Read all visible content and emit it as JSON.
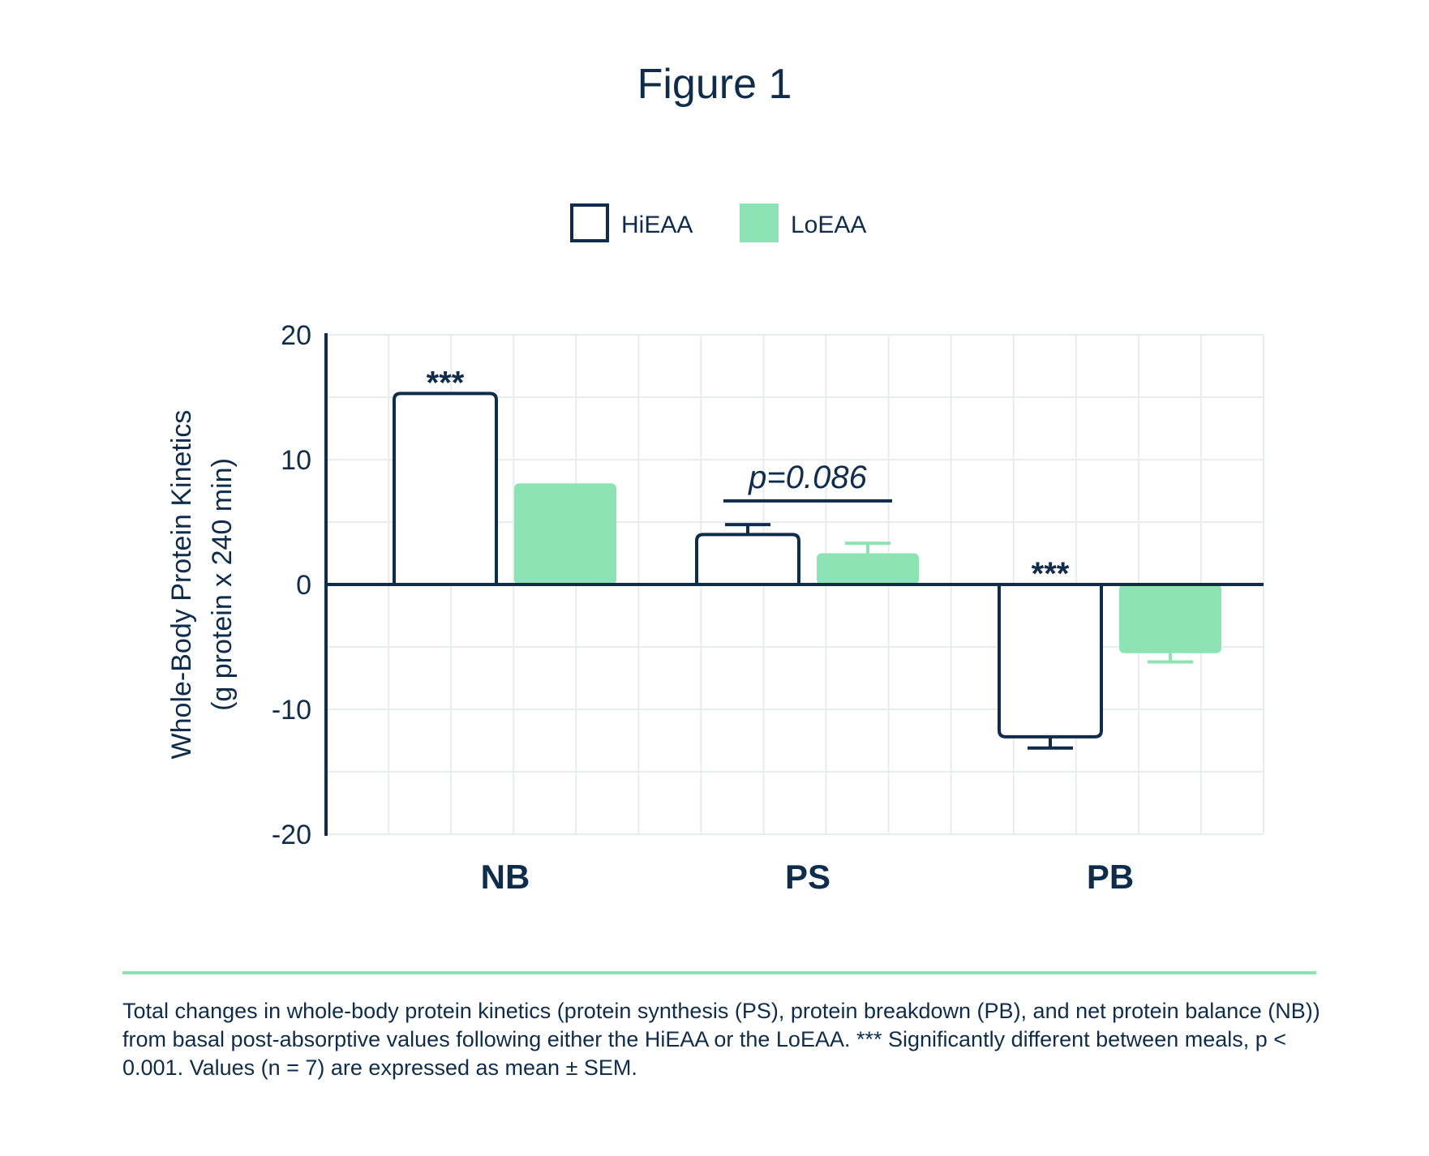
{
  "figure": {
    "title": "Figure 1",
    "caption": "Total changes in whole-body protein kinetics (protein synthesis (PS), protein breakdown (PB), and net protein balance (NB)) from basal post-absorptive values following either the HiEAA or the LoEAA. *** Significantly different between meals, p < 0.001. Values (n = 7) are expressed as mean ± SEM."
  },
  "colors": {
    "ink": "#0f2d4a",
    "loeaa_fill": "#8de3b3",
    "hieaa_fill": "#ffffff",
    "grid": "#e9ecee",
    "caption_rule": "#8de3b3"
  },
  "chart_data": {
    "type": "bar",
    "title": "",
    "ylabel_line1": "Whole-Body Protein Kinetics",
    "ylabel_line2": "(g protein x 240 min)",
    "xlabel": "",
    "ylim": [
      -20,
      20
    ],
    "yticks": [
      20,
      10,
      0,
      -10,
      -20
    ],
    "ytick_labels": [
      "20",
      "10",
      "0",
      "-10",
      "-20"
    ],
    "grid": true,
    "legend_position": "top-center",
    "categories": [
      "NB",
      "PS",
      "PB"
    ],
    "series": [
      {
        "name": "HiEAA",
        "style": "outline",
        "values": [
          15.3,
          4.0,
          -12.2
        ],
        "sem": [
          null,
          0.8,
          0.9
        ]
      },
      {
        "name": "LoEAA",
        "style": "filled",
        "values": [
          8.1,
          2.5,
          -5.5
        ],
        "sem": [
          null,
          0.8,
          0.7
        ]
      }
    ],
    "annotations": [
      {
        "text": "***",
        "category": "NB",
        "series": "HiEAA",
        "y": 15.3
      },
      {
        "text": "***",
        "category": "PB",
        "series": "HiEAA",
        "y": 0
      },
      {
        "text": "p=0.086",
        "category": "PS",
        "series": "both",
        "y": 6.7
      }
    ]
  }
}
